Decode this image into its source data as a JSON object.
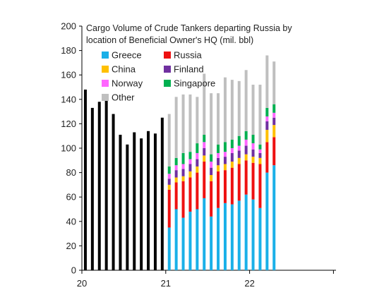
{
  "chart_data": {
    "type": "bar",
    "title": "Cargo Volume of Crude Tankers departing Russia by location of Beneficial Owner's HQ (mil. bbl)",
    "title_lines": [
      "Cargo Volume of Crude Tankers departing Russia by",
      "location of Beneficial Owner's HQ (mil. bbl)"
    ],
    "xlabel": "",
    "ylabel": "",
    "ylim": [
      0,
      200
    ],
    "y_ticks": [
      "0",
      "20",
      "40",
      "60",
      "80",
      "100",
      "120",
      "140",
      "160",
      "180",
      "200"
    ],
    "x_ticks": [
      "20",
      "21",
      "22"
    ],
    "grid": false,
    "legend_position": "top-left",
    "total_series": {
      "color": "#000000",
      "values": [
        148,
        133,
        138,
        141,
        128,
        111,
        103,
        113,
        108,
        114,
        112,
        125
      ]
    },
    "stack_months": 14,
    "series": [
      {
        "name": "Greece",
        "color": "#1ab0e8",
        "values": [
          35,
          50,
          43,
          48,
          50,
          59,
          44,
          51,
          55,
          54,
          57,
          62,
          58,
          51,
          80,
          86
        ]
      },
      {
        "name": "Russia",
        "color": "#ee1111",
        "values": [
          31,
          22,
          30,
          28,
          30,
          30,
          29,
          30,
          27,
          30,
          30,
          28,
          30,
          36,
          25,
          23
        ]
      },
      {
        "name": "China",
        "color": "#ffc000",
        "values": [
          4,
          4,
          4,
          5,
          5,
          5,
          5,
          5,
          5,
          5,
          5,
          5,
          5,
          5,
          10,
          10
        ]
      },
      {
        "name": "Finland",
        "color": "#7030a0",
        "values": [
          5,
          6,
          6,
          6,
          6,
          6,
          6,
          6,
          6,
          7,
          6,
          7,
          6,
          4,
          7,
          6
        ]
      },
      {
        "name": "Norway",
        "color": "#ff66ff",
        "values": [
          4,
          4,
          4,
          4,
          5,
          5,
          5,
          4,
          4,
          4,
          4,
          5,
          5,
          3,
          4,
          4
        ]
      },
      {
        "name": "Singapore",
        "color": "#00b050",
        "values": [
          6,
          6,
          9,
          6,
          8,
          6,
          6,
          7,
          8,
          7,
          8,
          7,
          7,
          4,
          7,
          7
        ]
      },
      {
        "name": "Other",
        "color": "#bfbfbf",
        "values": [
          43,
          50,
          48,
          47,
          38,
          50,
          50,
          42,
          53,
          49,
          45,
          50,
          41,
          49,
          43,
          35
        ]
      }
    ]
  }
}
